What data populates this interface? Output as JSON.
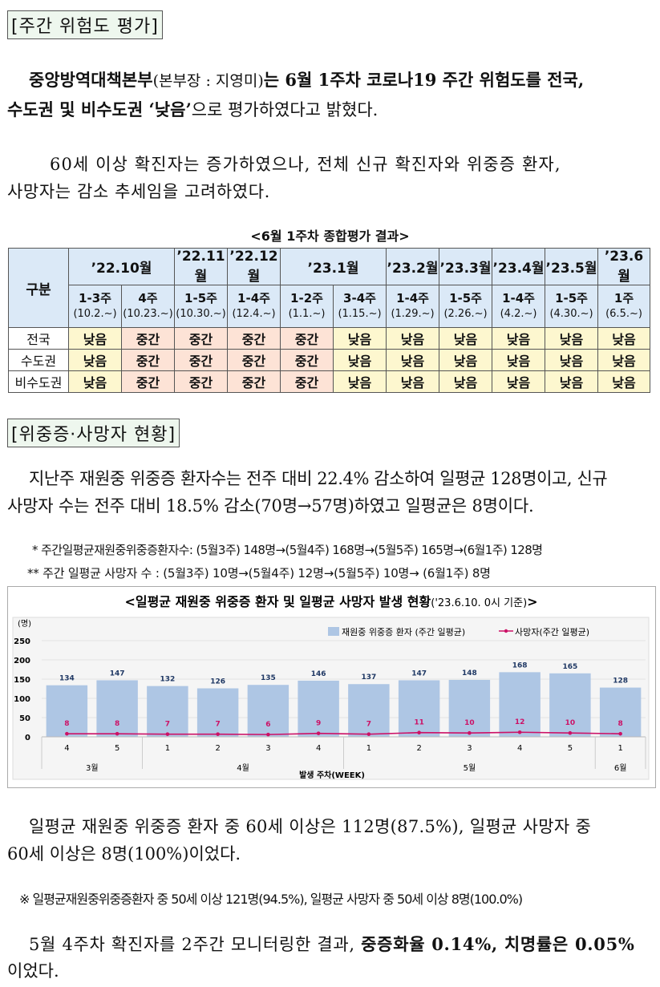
{
  "section1": {
    "title": "[주간 위험도 평가]",
    "para1_line1_normal": "중앙방역대책본부",
    "para1_line1_paren": "(본부장 : 지영미)",
    "para1_line1_rest": "는 6월 1주차 코로나19 주간 위험도를 전국,",
    "para1_line2_bold": "수도권 및 비수도권 ‘낮음’",
    "para1_line2_rest": "으로 평가하였다고 밝혔다.",
    "para2_line1": "60세 이상 확진자는 증가하였으나, 전체 신규 확진자와 위중증 환자,",
    "para2_line2": "사망자는 감소 추세임을 고려하였다."
  },
  "risk_table": {
    "caption": "<6월 1주차 종합평가 결과>",
    "corner_label": "구분",
    "months": [
      {
        "label": "’22.10월",
        "span": 2
      },
      {
        "label": "’22.11월",
        "span": 1
      },
      {
        "label": "’22.12월",
        "span": 1
      },
      {
        "label": "’23.1월",
        "span": 2
      },
      {
        "label": "’23.2월",
        "span": 1
      },
      {
        "label": "’23.3월",
        "span": 1
      },
      {
        "label": "’23.4월",
        "span": 1
      },
      {
        "label": "’23.5월",
        "span": 1
      },
      {
        "label": "’23.6월",
        "span": 1
      }
    ],
    "weeks": [
      {
        "week": "1-3주",
        "date": "(10.2.~)"
      },
      {
        "week": "4주",
        "date": "(10.23.~)"
      },
      {
        "week": "1-5주",
        "date": "(10.30.~)"
      },
      {
        "week": "1-4주",
        "date": "(12.4.~)"
      },
      {
        "week": "1-2주",
        "date": "(1.1.~)"
      },
      {
        "week": "3-4주",
        "date": "(1.15.~)"
      },
      {
        "week": "1-4주",
        "date": "(1.29.~)"
      },
      {
        "week": "1-5주",
        "date": "(2.26.~)"
      },
      {
        "week": "1-4주",
        "date": "(4.2.~)"
      },
      {
        "week": "1-5주",
        "date": "(4.30.~)"
      },
      {
        "week": "1주",
        "date": "(6.5.~)"
      }
    ],
    "rows": [
      {
        "region": "전국",
        "values": [
          "낮음",
          "중간",
          "중간",
          "중간",
          "중간",
          "낮음",
          "낮음",
          "낮음",
          "낮음",
          "낮음",
          "낮음"
        ]
      },
      {
        "region": "수도권",
        "values": [
          "낮음",
          "중간",
          "중간",
          "중간",
          "중간",
          "낮음",
          "낮음",
          "낮음",
          "낮음",
          "낮음",
          "낮음"
        ]
      },
      {
        "region": "비수도권",
        "values": [
          "낮음",
          "중간",
          "중간",
          "중간",
          "중간",
          "낮음",
          "낮음",
          "낮음",
          "낮음",
          "낮음",
          "낮음"
        ]
      }
    ],
    "colors": {
      "low": "#fdf7cf",
      "mid": "#fde3d6",
      "header": "#dbe9f7"
    }
  },
  "section2": {
    "title": "[위중증·사망자 현황]",
    "para_line1": "지난주 재원중 위중증 환자수는 전주 대비 22.4% 감소하여 일평균 128명이고, 신규",
    "para_line2": "사망자 수는 전주 대비 18.5% 감소(70명→57명)하였고 일평균은 8명이다.",
    "note1": "*  주간일평균재원중위중증환자수: (5월3주) 148명→(5월4주) 168명→(5월5주) 165명→(6월1주) 128명",
    "note2": "**  주간 일평균 사망자 수 : (5월3주) 10명→(5월4주) 12명→(5월5주) 10명→ (6월1주) 8명"
  },
  "chart_data": {
    "type": "bar",
    "title_main": "<일평균 재원중 위중증 환자 및 일평균 사망자 발생 현황",
    "title_sub": "('23.6.10. 0시 기준)",
    "title_end": ">",
    "ylabel": "(명)",
    "xlabel": "발생 주차(WEEK)",
    "ylim": [
      0,
      250
    ],
    "yticks": [
      "250",
      "200",
      "150",
      "100",
      "50",
      "0"
    ],
    "categories": [
      "4",
      "5",
      "1",
      "2",
      "3",
      "4",
      "1",
      "2",
      "3",
      "4",
      "5",
      "1"
    ],
    "month_groups": [
      {
        "label": "3월",
        "count": 2
      },
      {
        "label": "4월",
        "count": 4
      },
      {
        "label": "5월",
        "count": 5
      },
      {
        "label": "6월",
        "count": 1
      }
    ],
    "series": [
      {
        "name": "재원중 위중증 환자 (주간 일평균)",
        "kind": "bar",
        "color": "#aec6e4",
        "values": [
          134,
          147,
          132,
          126,
          135,
          146,
          137,
          147,
          148,
          168,
          165,
          128
        ]
      },
      {
        "name": "사망자(주간 일평균)",
        "kind": "line",
        "color": "#cc1166",
        "values": [
          8,
          8,
          7,
          7,
          6,
          9,
          7,
          11,
          10,
          12,
          10,
          8
        ]
      }
    ]
  },
  "section3": {
    "para_line1": "일평균 재원중 위중증 환자 중 60세 이상은 112명(87.5%), 일평균  사망자 중",
    "para_line2": "60세 이상은 8명(100%)이었다.",
    "note": "※ 일평균재원중위중증환자 중 50세 이상 121명(94.5%), 일평균 사망자 중 50세 이상 8명(100.0%)",
    "para2_line1_normal": "5월 4주차 확진자를 2주간 모니터링한 결과,",
    "para2_line1_bold": "중증화율 0.14%, 치명률은 0.05%",
    "para2_line2": "이었다."
  }
}
